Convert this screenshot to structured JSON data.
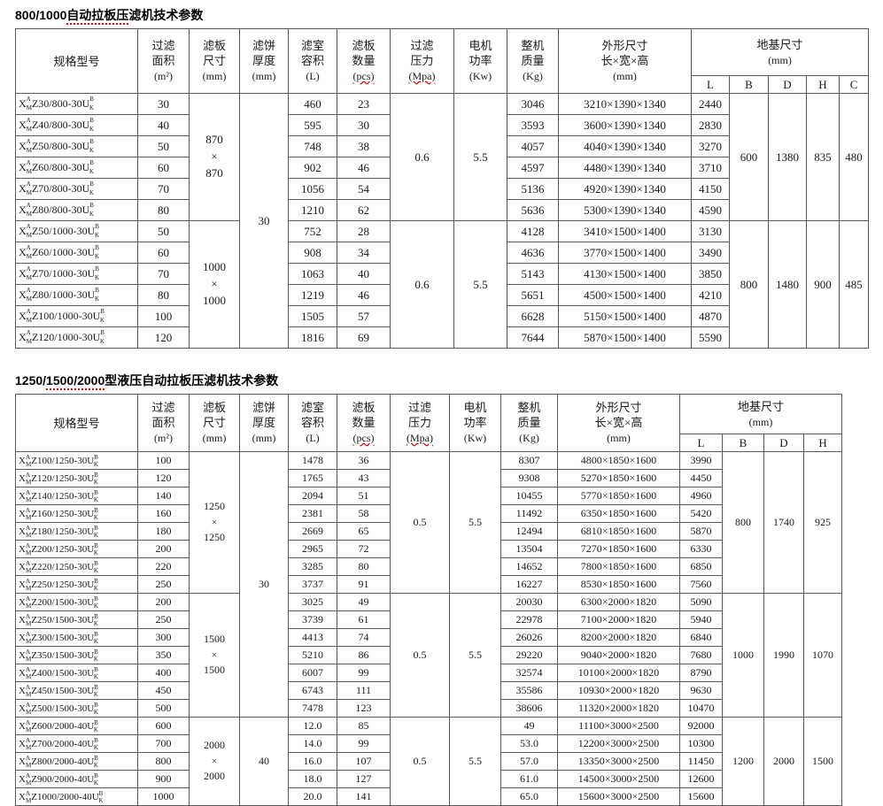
{
  "model_affix": {
    "prefix": "X",
    "sup1": "A",
    "sub1": "M",
    "mid": "U",
    "sup2": "B",
    "sub2": "K"
  },
  "tables": [
    {
      "title_segments": [
        {
          "text": "800/1000",
          "squiggle": false
        },
        {
          "text": "自动拉板压",
          "squiggle": true
        },
        {
          "text": "滤机技术参数",
          "squiggle": false
        }
      ],
      "header": {
        "model_label": "规格型号",
        "simple_cols": [
          {
            "lines": [
              "过滤",
              "面积"
            ],
            "unit": "(m²)",
            "squiggle": false
          },
          {
            "lines": [
              "滤板",
              "尺寸"
            ],
            "unit": "(mm)",
            "squiggle": false
          },
          {
            "lines": [
              "滤饼",
              "厚度"
            ],
            "unit": "(mm)",
            "squiggle": false
          },
          {
            "lines": [
              "滤室",
              "容积"
            ],
            "unit": "(L)",
            "squiggle": false
          },
          {
            "lines": [
              "滤板",
              "数量"
            ],
            "unit": "(pcs)",
            "squiggle": true
          },
          {
            "lines": [
              "过滤",
              "压力"
            ],
            "unit": "(Mpa)",
            "squiggle": true
          },
          {
            "lines": [
              "电机",
              "功率"
            ],
            "unit": "(Kw)",
            "squiggle": false
          },
          {
            "lines": [
              "整机",
              "质量"
            ],
            "unit": "(Kg)",
            "squiggle": false
          }
        ],
        "dims_lines": [
          "外形尺寸",
          "长×宽×高",
          "(mm)"
        ],
        "foundation_label": "地基尺寸",
        "foundation_unit": "(mm)",
        "foundation_cols": [
          "L",
          "B",
          "D",
          "H",
          "C"
        ]
      },
      "rows": [
        {
          "model": "Z30/800-30",
          "area": "30",
          "volume": "460",
          "plates": "23",
          "mass": "3046",
          "dims": "3210×1390×1340",
          "L": "2440"
        },
        {
          "model": "Z40/800-30",
          "area": "40",
          "volume": "595",
          "plates": "30",
          "mass": "3593",
          "dims": "3600×1390×1340",
          "L": "2830"
        },
        {
          "model": "Z50/800-30",
          "area": "50",
          "volume": "748",
          "plates": "38",
          "mass": "4057",
          "dims": "4040×1390×1340",
          "L": "3270"
        },
        {
          "model": "Z60/800-30",
          "area": "60",
          "volume": "902",
          "plates": "46",
          "mass": "4597",
          "dims": "4480×1390×1340",
          "L": "3710"
        },
        {
          "model": "Z70/800-30",
          "area": "70",
          "volume": "1056",
          "plates": "54",
          "mass": "5136",
          "dims": "4920×1390×1340",
          "L": "4150"
        },
        {
          "model": "Z80/800-30",
          "area": "80",
          "volume": "1210",
          "plates": "62",
          "mass": "5636",
          "dims": "5300×1390×1340",
          "L": "4590"
        },
        {
          "model": "Z50/1000-30",
          "area": "50",
          "volume": "752",
          "plates": "28",
          "mass": "4128",
          "dims": "3410×1500×1400",
          "L": "3130"
        },
        {
          "model": "Z60/1000-30",
          "area": "60",
          "volume": "908",
          "plates": "34",
          "mass": "4636",
          "dims": "3770×1500×1400",
          "L": "3490"
        },
        {
          "model": "Z70/1000-30",
          "area": "70",
          "volume": "1063",
          "plates": "40",
          "mass": "5143",
          "dims": "4130×1500×1400",
          "L": "3850"
        },
        {
          "model": "Z80/1000-30",
          "area": "80",
          "volume": "1219",
          "plates": "46",
          "mass": "5651",
          "dims": "4500×1500×1400",
          "L": "4210"
        },
        {
          "model": "Z100/1000-30",
          "area": "100",
          "volume": "1505",
          "plates": "57",
          "mass": "6628",
          "dims": "5150×1500×1400",
          "L": "4870"
        },
        {
          "model": "Z120/1000-30",
          "area": "120",
          "volume": "1816",
          "plates": "69",
          "mass": "7644",
          "dims": "5870×1500×1400",
          "L": "5590"
        }
      ],
      "blocks": [
        {
          "start": 0,
          "rows": 6,
          "plate_size": "870×870",
          "pressure": "0.6",
          "power": "5.5",
          "foundation": [
            "600",
            "1380",
            "835",
            "480"
          ]
        },
        {
          "start": 6,
          "rows": 6,
          "plate_size": "1000×1000",
          "pressure": "0.6",
          "power": "5.5",
          "foundation": [
            "800",
            "1480",
            "900",
            "485"
          ]
        }
      ],
      "cake_blocks": [
        {
          "start": 0,
          "rows": 12,
          "value": "30"
        }
      ]
    },
    {
      "title_segments": [
        {
          "text": "1250/",
          "squiggle": false
        },
        {
          "text": "1500/2000",
          "squiggle": true
        },
        {
          "text": "型液压自动拉板压滤机技术参数",
          "squiggle": false
        }
      ],
      "header": {
        "model_label": "规格型号",
        "simple_cols": [
          {
            "lines": [
              "过滤",
              "面积"
            ],
            "unit": "(m²)",
            "squiggle": false
          },
          {
            "lines": [
              "滤板",
              "尺寸"
            ],
            "unit": "(mm)",
            "squiggle": false
          },
          {
            "lines": [
              "滤饼",
              "厚度"
            ],
            "unit": "(mm)",
            "squiggle": false
          },
          {
            "lines": [
              "滤室",
              "容积"
            ],
            "unit": "(L)",
            "squiggle": false
          },
          {
            "lines": [
              "滤板",
              "数量"
            ],
            "unit": "(pcs)",
            "squiggle": true
          },
          {
            "lines": [
              "过滤",
              "压力"
            ],
            "unit": "(Mpa)",
            "squiggle": true
          },
          {
            "lines": [
              "电机",
              "功率"
            ],
            "unit": "(Kw)",
            "squiggle": false
          },
          {
            "lines": [
              "整机",
              "质量"
            ],
            "unit": "(Kg)",
            "squiggle": false
          }
        ],
        "dims_lines": [
          "外形尺寸",
          "长×宽×高",
          "(mm)"
        ],
        "foundation_label": "地基尺寸",
        "foundation_unit": "(mm)",
        "foundation_cols": [
          "L",
          "B",
          "D",
          "H"
        ]
      },
      "rows": [
        {
          "model": "Z100/1250-30",
          "area": "100",
          "volume": "1478",
          "plates": "36",
          "mass": "8307",
          "dims": "4800×1850×1600",
          "L": "3990"
        },
        {
          "model": "Z120/1250-30",
          "area": "120",
          "volume": "1765",
          "plates": "43",
          "mass": "9308",
          "dims": "5270×1850×1600",
          "L": "4450"
        },
        {
          "model": "Z140/1250-30",
          "area": "140",
          "volume": "2094",
          "plates": "51",
          "mass": "10455",
          "dims": "5770×1850×1600",
          "L": "4960"
        },
        {
          "model": "Z160/1250-30",
          "area": "160",
          "volume": "2381",
          "plates": "58",
          "mass": "11492",
          "dims": "6350×1850×1600",
          "L": "5420"
        },
        {
          "model": "Z180/1250-30",
          "area": "180",
          "volume": "2669",
          "plates": "65",
          "mass": "12494",
          "dims": "6810×1850×1600",
          "L": "5870"
        },
        {
          "model": "Z200/1250-30",
          "area": "200",
          "volume": "2965",
          "plates": "72",
          "mass": "13504",
          "dims": "7270×1850×1600",
          "L": "6330"
        },
        {
          "model": "Z220/1250-30",
          "area": "220",
          "volume": "3285",
          "plates": "80",
          "mass": "14652",
          "dims": "7800×1850×1600",
          "L": "6850"
        },
        {
          "model": "Z250/1250-30",
          "area": "250",
          "volume": "3737",
          "plates": "91",
          "mass": "16227",
          "dims": "8530×1850×1600",
          "L": "7560"
        },
        {
          "model": "Z200/1500-30",
          "area": "200",
          "volume": "3025",
          "plates": "49",
          "mass": "20030",
          "dims": "6300×2000×1820",
          "L": "5090"
        },
        {
          "model": "Z250/1500-30",
          "area": "250",
          "volume": "3739",
          "plates": "61",
          "mass": "22978",
          "dims": "7100×2000×1820",
          "L": "5940"
        },
        {
          "model": "Z300/1500-30",
          "area": "300",
          "volume": "4413",
          "plates": "74",
          "mass": "26026",
          "dims": "8200×2000×1820",
          "L": "6840"
        },
        {
          "model": "Z350/1500-30",
          "area": "350",
          "volume": "5210",
          "plates": "86",
          "mass": "29220",
          "dims": "9040×2000×1820",
          "L": "7680"
        },
        {
          "model": "Z400/1500-30",
          "area": "400",
          "volume": "6007",
          "plates": "99",
          "mass": "32574",
          "dims": "10100×2000×1820",
          "L": "8790"
        },
        {
          "model": "Z450/1500-30",
          "area": "450",
          "volume": "6743",
          "plates": "111",
          "mass": "35586",
          "dims": "10930×2000×1820",
          "L": "9630"
        },
        {
          "model": "Z500/1500-30",
          "area": "500",
          "volume": "7478",
          "plates": "123",
          "mass": "38606",
          "dims": "11320×2000×1820",
          "L": "10470"
        },
        {
          "model": "Z600/2000-40",
          "area": "600",
          "volume": "12.0",
          "plates": "85",
          "mass": "49",
          "dims": "11100×3000×2500",
          "L": "92000"
        },
        {
          "model": "Z700/2000-40",
          "area": "700",
          "volume": "14.0",
          "plates": "99",
          "mass": "53.0",
          "dims": "12200×3000×2500",
          "L": "10300"
        },
        {
          "model": "Z800/2000-40",
          "area": "800",
          "volume": "16.0",
          "plates": "107",
          "mass": "57.0",
          "dims": "13350×3000×2500",
          "L": "11450"
        },
        {
          "model": "Z900/2000-40",
          "area": "900",
          "volume": "18.0",
          "plates": "127",
          "mass": "61.0",
          "dims": "14500×3000×2500",
          "L": "12600"
        },
        {
          "model": "Z1000/2000-40",
          "area": "1000",
          "volume": "20.0",
          "plates": "141",
          "mass": "65.0",
          "dims": "15600×3000×2500",
          "L": "15600"
        }
      ],
      "blocks": [
        {
          "start": 0,
          "rows": 8,
          "plate_size": "1250×1250",
          "pressure": "0.5",
          "power": "5.5",
          "foundation": [
            "800",
            "1740",
            "925"
          ]
        },
        {
          "start": 8,
          "rows": 7,
          "plate_size": "1500×1500",
          "pressure": "0.5",
          "power": "5.5",
          "foundation": [
            "1000",
            "1990",
            "1070"
          ]
        },
        {
          "start": 15,
          "rows": 5,
          "plate_size": "2000×2000",
          "pressure": "0.5",
          "power": "5.5",
          "foundation": [
            "1200",
            "2000",
            "1500"
          ]
        }
      ],
      "cake_blocks": [
        {
          "start": 0,
          "rows": 15,
          "value": "30"
        },
        {
          "start": 15,
          "rows": 5,
          "value": "40"
        }
      ]
    }
  ]
}
